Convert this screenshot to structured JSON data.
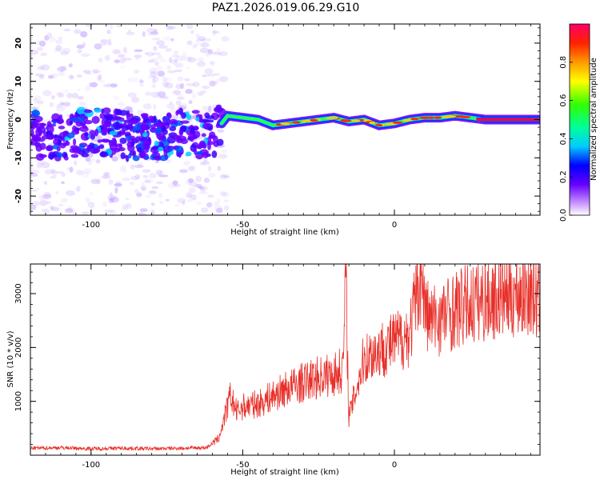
{
  "title": "PAZ1.2026.019.06.29.G10",
  "chart_data": [
    {
      "type": "heatmap",
      "name": "spectrogram",
      "xlabel": "Height of straight line (km)",
      "ylabel": "Frequency (Hz)",
      "xlim": [
        -120,
        48
      ],
      "ylim": [
        -25,
        25
      ],
      "xticks": [
        -100,
        -50,
        0
      ],
      "xtick_labels": [
        "-100",
        "-50",
        "0"
      ],
      "yticks": [
        -20,
        -10,
        0,
        10,
        20
      ],
      "ytick_labels": [
        "-20",
        "-10",
        "0",
        "10",
        "20"
      ],
      "colorbar": {
        "label": "Normalized spectral amplitude",
        "range": [
          0,
          1
        ],
        "ticks": [
          0.0,
          0.2,
          0.4,
          0.6,
          0.8
        ],
        "tick_labels": [
          "0.0",
          "0.2",
          "0.4",
          "0.6",
          "0.8"
        ],
        "colors": [
          "#ffffff",
          "#9933ff",
          "#3300ff",
          "#0066ff",
          "#00ffff",
          "#00ff66",
          "#66ff00",
          "#ffff00",
          "#ffaa00",
          "#ff3300",
          "#ff0066"
        ]
      },
      "ridge": {
        "description_points_x": [
          -120,
          -110,
          -100,
          -90,
          -80,
          -70,
          -60,
          -55,
          -50,
          -45,
          -40,
          -35,
          -30,
          -25,
          -20,
          -15,
          -10,
          -5,
          0,
          5,
          10,
          15,
          20,
          25,
          30,
          40,
          48
        ],
        "frequency_hz": [
          -4,
          -5,
          -3,
          -4,
          -5,
          -3,
          -4,
          1,
          0.5,
          0,
          -1.5,
          -1,
          -0.5,
          0,
          0.5,
          -0.5,
          0,
          -1.5,
          -1,
          0,
          0.5,
          0.5,
          1,
          0.5,
          0,
          0,
          0
        ]
      }
    },
    {
      "type": "line",
      "name": "snr",
      "xlabel": "Height of straight line (km)",
      "ylabel": "SNR (10 * v/v)",
      "xlim": [
        -120,
        48
      ],
      "ylim": [
        0,
        3550
      ],
      "xticks": [
        -100,
        -50,
        0
      ],
      "xtick_labels": [
        "-100",
        "-50",
        "0"
      ],
      "yticks": [
        1000,
        2000,
        3000
      ],
      "ytick_labels": [
        "1000",
        "2000",
        "3000"
      ],
      "color": "#e8302a",
      "series": {
        "x": [
          -120,
          -110,
          -100,
          -90,
          -80,
          -70,
          -62,
          -58,
          -56,
          -54,
          -52,
          -50,
          -45,
          -40,
          -35,
          -30,
          -25,
          -20,
          -17,
          -16,
          -15,
          -10,
          -5,
          0,
          5,
          9,
          10,
          12,
          15,
          20,
          25,
          30,
          35,
          40,
          45,
          48
        ],
        "y": [
          130,
          140,
          120,
          130,
          120,
          130,
          140,
          300,
          700,
          1100,
          800,
          900,
          950,
          1100,
          1250,
          1350,
          1450,
          1500,
          1600,
          3300,
          700,
          1800,
          1950,
          2100,
          2250,
          3450,
          2700,
          2500,
          2550,
          2700,
          2800,
          2900,
          2950,
          3000,
          3050,
          2800
        ]
      }
    }
  ]
}
